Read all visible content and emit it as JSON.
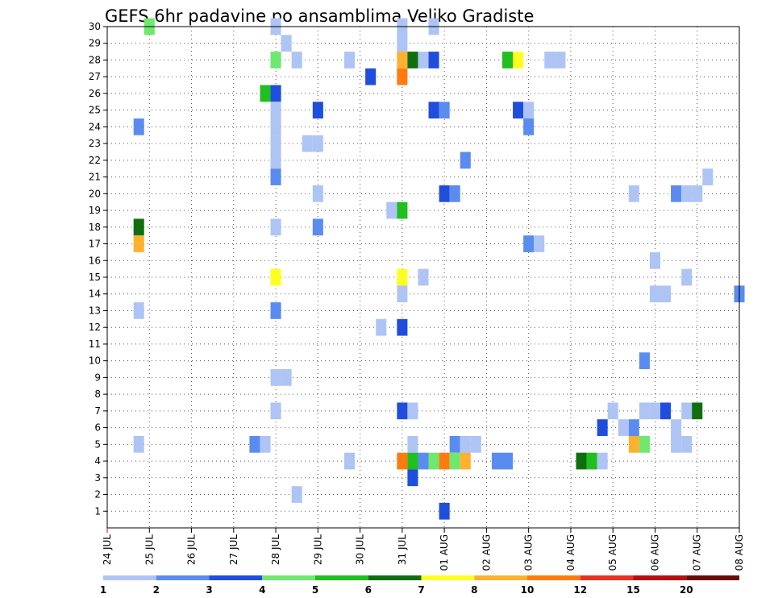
{
  "chart_data": {
    "type": "heatmap",
    "title": "GEFS 6hr padavine po ansamblima Veliko Gradiste",
    "y_ticks": [
      1,
      2,
      3,
      4,
      5,
      6,
      7,
      8,
      9,
      10,
      11,
      12,
      13,
      14,
      15,
      16,
      17,
      18,
      19,
      20,
      21,
      22,
      23,
      24,
      25,
      26,
      27,
      28,
      29,
      30
    ],
    "ylim": [
      0,
      30
    ],
    "x_tick_labels": [
      "24 JUL",
      "25 JUL",
      "26 JUL",
      "27 JUL",
      "28 JUL",
      "29 JUL",
      "30 JUL",
      "31 JUL",
      "01 AUG",
      "02 AUG",
      "03 AUG",
      "04 AUG",
      "05 AUG",
      "06 AUG",
      "07 AUG",
      "08 AUG"
    ],
    "x_step_hours": 6,
    "legend": {
      "labels": [
        "1",
        "2",
        "3",
        "4",
        "5",
        "6",
        "7",
        "8",
        "10",
        "12",
        "15",
        "20"
      ],
      "colors": [
        "#aec4f5",
        "#5a8cf0",
        "#1f4edc",
        "#6ee86e",
        "#1fbf1f",
        "#0f6f0f",
        "#ffff1f",
        "#ffb02f",
        "#ff7b10",
        "#e8321f",
        "#b41010",
        "#6b0a0a"
      ]
    },
    "color_by_level": {
      "1": "#aec4f5",
      "2": "#5a8cf0",
      "3": "#1f4edc",
      "4": "#6ee86e",
      "5": "#1fbf1f",
      "6": "#0f6f0f",
      "7": "#ffff1f",
      "8": "#ffb02f",
      "10": "#ff7b10",
      "12": "#e8321f"
    },
    "cells": [
      {
        "t": 31.75,
        "m": 30,
        "v": 1
      },
      {
        "t": 25.0,
        "m": 30,
        "v": 4
      },
      {
        "t": 28.0,
        "m": 30,
        "v": 1
      },
      {
        "t": 31.0,
        "m": 30,
        "v": 1
      },
      {
        "t": 28.25,
        "m": 29,
        "v": 1
      },
      {
        "t": 31.0,
        "m": 29,
        "v": 1
      },
      {
        "t": 28.0,
        "m": 28,
        "v": 4
      },
      {
        "t": 28.5,
        "m": 28,
        "v": 1
      },
      {
        "t": 29.75,
        "m": 28,
        "v": 1
      },
      {
        "t": 31.0,
        "m": 28,
        "v": 8
      },
      {
        "t": 31.25,
        "m": 28,
        "v": 6
      },
      {
        "t": 31.5,
        "m": 28,
        "v": 1
      },
      {
        "t": 31.75,
        "m": 28,
        "v": 3
      },
      {
        "t": 33.5,
        "m": 28,
        "v": 5
      },
      {
        "t": 33.75,
        "m": 28,
        "v": 7
      },
      {
        "t": 34.5,
        "m": 28,
        "v": 1
      },
      {
        "t": 34.75,
        "m": 28,
        "v": 1
      },
      {
        "t": 30.25,
        "m": 27,
        "v": 3
      },
      {
        "t": 31.0,
        "m": 27,
        "v": 10
      },
      {
        "t": 27.75,
        "m": 26,
        "v": 5
      },
      {
        "t": 28.0,
        "m": 26,
        "v": 3
      },
      {
        "t": 28.0,
        "m": 25,
        "v": 1
      },
      {
        "t": 29.0,
        "m": 25,
        "v": 3
      },
      {
        "t": 31.75,
        "m": 25,
        "v": 3
      },
      {
        "t": 32.0,
        "m": 25,
        "v": 2
      },
      {
        "t": 33.75,
        "m": 25,
        "v": 3
      },
      {
        "t": 34.0,
        "m": 25,
        "v": 1
      },
      {
        "t": 24.75,
        "m": 24,
        "v": 2
      },
      {
        "t": 28.0,
        "m": 24,
        "v": 1
      },
      {
        "t": 34.0,
        "m": 24,
        "v": 2
      },
      {
        "t": 28.0,
        "m": 23,
        "v": 1
      },
      {
        "t": 28.75,
        "m": 23,
        "v": 1
      },
      {
        "t": 29.0,
        "m": 23,
        "v": 1
      },
      {
        "t": 28.0,
        "m": 22,
        "v": 1
      },
      {
        "t": 32.5,
        "m": 22,
        "v": 2
      },
      {
        "t": 28.0,
        "m": 21,
        "v": 2
      },
      {
        "t": 38.25,
        "m": 21,
        "v": 1
      },
      {
        "t": 29.0,
        "m": 20,
        "v": 1
      },
      {
        "t": 32.0,
        "m": 20,
        "v": 3
      },
      {
        "t": 32.25,
        "m": 20,
        "v": 2
      },
      {
        "t": 36.5,
        "m": 20,
        "v": 1
      },
      {
        "t": 37.5,
        "m": 20,
        "v": 2
      },
      {
        "t": 37.75,
        "m": 20,
        "v": 1
      },
      {
        "t": 38.0,
        "m": 20,
        "v": 1
      },
      {
        "t": 30.75,
        "m": 19,
        "v": 1
      },
      {
        "t": 31.0,
        "m": 19,
        "v": 5
      },
      {
        "t": 24.75,
        "m": 18,
        "v": 6
      },
      {
        "t": 28.0,
        "m": 18,
        "v": 1
      },
      {
        "t": 29.0,
        "m": 18,
        "v": 2
      },
      {
        "t": 24.75,
        "m": 17,
        "v": 8
      },
      {
        "t": 34.0,
        "m": 17,
        "v": 2
      },
      {
        "t": 34.25,
        "m": 17,
        "v": 1
      },
      {
        "t": 37.0,
        "m": 16,
        "v": 1
      },
      {
        "t": 28.0,
        "m": 15,
        "v": 7
      },
      {
        "t": 31.0,
        "m": 15,
        "v": 7
      },
      {
        "t": 31.5,
        "m": 15,
        "v": 1
      },
      {
        "t": 37.75,
        "m": 15,
        "v": 1
      },
      {
        "t": 31.0,
        "m": 14,
        "v": 1
      },
      {
        "t": 37.0,
        "m": 14,
        "v": 1
      },
      {
        "t": 37.25,
        "m": 14,
        "v": 1
      },
      {
        "t": 39.0,
        "m": 14,
        "v": 2
      },
      {
        "t": 24.75,
        "m": 13,
        "v": 1
      },
      {
        "t": 28.0,
        "m": 13,
        "v": 2
      },
      {
        "t": 30.5,
        "m": 12,
        "v": 1
      },
      {
        "t": 31.0,
        "m": 12,
        "v": 3
      },
      {
        "t": 36.75,
        "m": 10,
        "v": 2
      },
      {
        "t": 28.0,
        "m": 9,
        "v": 1
      },
      {
        "t": 28.25,
        "m": 9,
        "v": 1
      },
      {
        "t": 28.0,
        "m": 7,
        "v": 1
      },
      {
        "t": 31.0,
        "m": 7,
        "v": 3
      },
      {
        "t": 31.25,
        "m": 7,
        "v": 1
      },
      {
        "t": 36.0,
        "m": 7,
        "v": 1
      },
      {
        "t": 36.75,
        "m": 7,
        "v": 1
      },
      {
        "t": 37.0,
        "m": 7,
        "v": 1
      },
      {
        "t": 37.25,
        "m": 7,
        "v": 3
      },
      {
        "t": 37.75,
        "m": 7,
        "v": 1
      },
      {
        "t": 38.0,
        "m": 7,
        "v": 6
      },
      {
        "t": 35.75,
        "m": 6,
        "v": 3
      },
      {
        "t": 36.25,
        "m": 6,
        "v": 1
      },
      {
        "t": 36.5,
        "m": 6,
        "v": 2
      },
      {
        "t": 37.5,
        "m": 6,
        "v": 1
      },
      {
        "t": 24.75,
        "m": 5,
        "v": 1
      },
      {
        "t": 27.5,
        "m": 5,
        "v": 2
      },
      {
        "t": 27.75,
        "m": 5,
        "v": 1
      },
      {
        "t": 31.25,
        "m": 5,
        "v": 1
      },
      {
        "t": 32.25,
        "m": 5,
        "v": 2
      },
      {
        "t": 32.5,
        "m": 5,
        "v": 1
      },
      {
        "t": 32.75,
        "m": 5,
        "v": 1
      },
      {
        "t": 36.5,
        "m": 5,
        "v": 8
      },
      {
        "t": 36.75,
        "m": 5,
        "v": 4
      },
      {
        "t": 37.5,
        "m": 5,
        "v": 1
      },
      {
        "t": 37.75,
        "m": 5,
        "v": 1
      },
      {
        "t": 29.75,
        "m": 4,
        "v": 1
      },
      {
        "t": 31.0,
        "m": 4,
        "v": 10
      },
      {
        "t": 31.25,
        "m": 4,
        "v": 5
      },
      {
        "t": 31.5,
        "m": 4,
        "v": 2
      },
      {
        "t": 31.75,
        "m": 4,
        "v": 4
      },
      {
        "t": 32.0,
        "m": 4,
        "v": 10
      },
      {
        "t": 32.25,
        "m": 4,
        "v": 4
      },
      {
        "t": 32.5,
        "m": 4,
        "v": 8
      },
      {
        "t": 33.25,
        "m": 4,
        "v": 2
      },
      {
        "t": 33.5,
        "m": 4,
        "v": 2
      },
      {
        "t": 35.25,
        "m": 4,
        "v": 6
      },
      {
        "t": 35.5,
        "m": 4,
        "v": 5
      },
      {
        "t": 35.75,
        "m": 4,
        "v": 1
      },
      {
        "t": 31.25,
        "m": 3,
        "v": 3
      },
      {
        "t": 28.5,
        "m": 2,
        "v": 1
      },
      {
        "t": 32.0,
        "m": 1,
        "v": 3
      }
    ]
  }
}
